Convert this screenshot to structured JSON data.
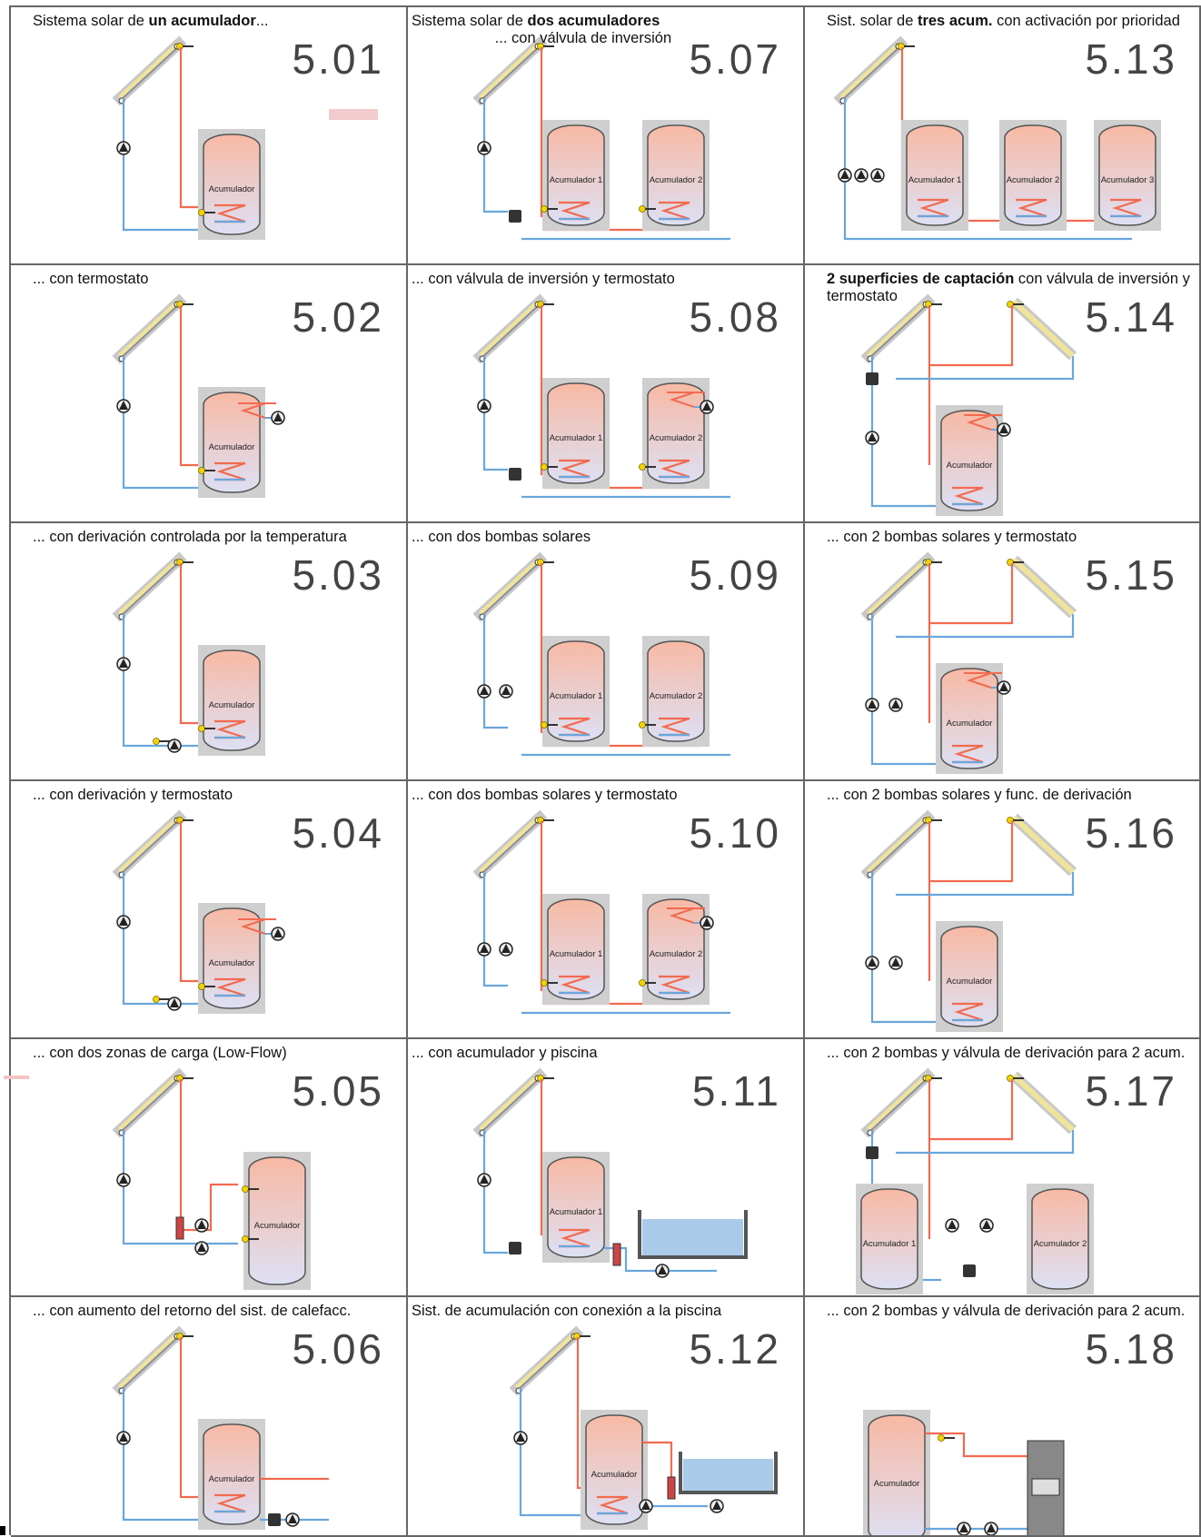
{
  "cells": [
    {
      "id": "5.01",
      "title_html": "Sistema solar de <b>un acumulador</b>...",
      "tanks": [
        "Acumulador"
      ],
      "variant": "single"
    },
    {
      "id": "5.07",
      "title_html": "Sistema solar de <b>dos acumuladores</b><br>&nbsp;&nbsp;&nbsp;&nbsp;&nbsp;&nbsp;&nbsp;&nbsp;&nbsp;&nbsp;&nbsp;&nbsp;&nbsp;&nbsp;&nbsp;&nbsp;&nbsp;&nbsp;&nbsp;&nbsp;... con válvula de inversión",
      "tanks": [
        "Acumulador 1",
        "Acumulador 2"
      ],
      "variant": "double"
    },
    {
      "id": "5.13",
      "title_html": "Sist. solar de <b>tres acum.</b> con activación por prioridad",
      "tanks": [
        "Acumulador 1",
        "Acumulador 2",
        "Acumulador 3"
      ],
      "variant": "triple"
    },
    {
      "id": "5.02",
      "title_html": "... con termostato",
      "tanks": [
        "Acumulador"
      ],
      "variant": "single-thermo"
    },
    {
      "id": "5.08",
      "title_html": "... con válvula de inversión y termostato",
      "tanks": [
        "Acumulador 1",
        "Acumulador 2"
      ],
      "variant": "double-thermo"
    },
    {
      "id": "5.14",
      "title_html": "<b>2 superficies de captación</b> con válvula de inversión y termostato",
      "tanks": [
        "Acumulador"
      ],
      "variant": "east-west-thermo"
    },
    {
      "id": "5.03",
      "title_html": "... con derivación controlada por la temperatura",
      "tanks": [
        "Acumulador"
      ],
      "variant": "single-bypass"
    },
    {
      "id": "5.09",
      "title_html": "... con dos bombas solares",
      "tanks": [
        "Acumulador 1",
        "Acumulador 2"
      ],
      "variant": "double-2pumps"
    },
    {
      "id": "5.15",
      "title_html": "... con 2 bombas solares y termostato",
      "tanks": [
        "Acumulador"
      ],
      "variant": "east-west-2pumps-thermo"
    },
    {
      "id": "5.04",
      "title_html": "... con derivación y termostato",
      "tanks": [
        "Acumulador"
      ],
      "variant": "single-bypass-thermo"
    },
    {
      "id": "5.10",
      "title_html": "... con dos bombas solares y termostato",
      "tanks": [
        "Acumulador 1",
        "Acumulador 2"
      ],
      "variant": "double-2pumps-thermo"
    },
    {
      "id": "5.16",
      "title_html": "... con 2 bombas solares y func. de derivación",
      "tanks": [
        "Acumulador"
      ],
      "variant": "east-west-2pumps-bypass"
    },
    {
      "id": "5.05",
      "title_html": "... con dos zonas de carga (Low-Flow)",
      "tanks": [
        "Acumulador"
      ],
      "variant": "lowflow"
    },
    {
      "id": "5.11",
      "title_html": "... con acumulador y piscina",
      "tanks": [
        "Acumulador 1"
      ],
      "variant": "pool"
    },
    {
      "id": "5.17",
      "title_html": "... con 2 bombas y válvula de derivación para 2 acum.",
      "tanks": [
        "Acumulador 1",
        "Acumulador 2"
      ],
      "variant": "east-west-2tanks"
    },
    {
      "id": "5.06",
      "title_html": "... con aumento del retorno del sist. de calefacc.",
      "tanks": [
        "Acumulador"
      ],
      "variant": "return-boost"
    },
    {
      "id": "5.12",
      "title_html": "Sist. de acumulación con conexión a la piscina",
      "tanks": [
        "Acumulador"
      ],
      "variant": "pool-exchanger"
    },
    {
      "id": "5.18",
      "title_html": "... con 2 bombas y válvula de derivación para 2 acum.",
      "tanks": [
        "Acumulador"
      ],
      "variant": "boiler"
    }
  ],
  "colors": {
    "hot": "#f26a4f",
    "cold": "#6aa6dc",
    "tank_top": "#f8b9a4",
    "tank_bottom": "#dde0f4",
    "frame": "#c8c8c8",
    "sensor": "#f3d400",
    "collector": "#f0e49a"
  },
  "icons": [
    "solar-collector-icon",
    "pump-icon",
    "sensor-icon",
    "valve-icon",
    "heat-exchanger-icon",
    "pool-icon",
    "boiler-icon"
  ]
}
